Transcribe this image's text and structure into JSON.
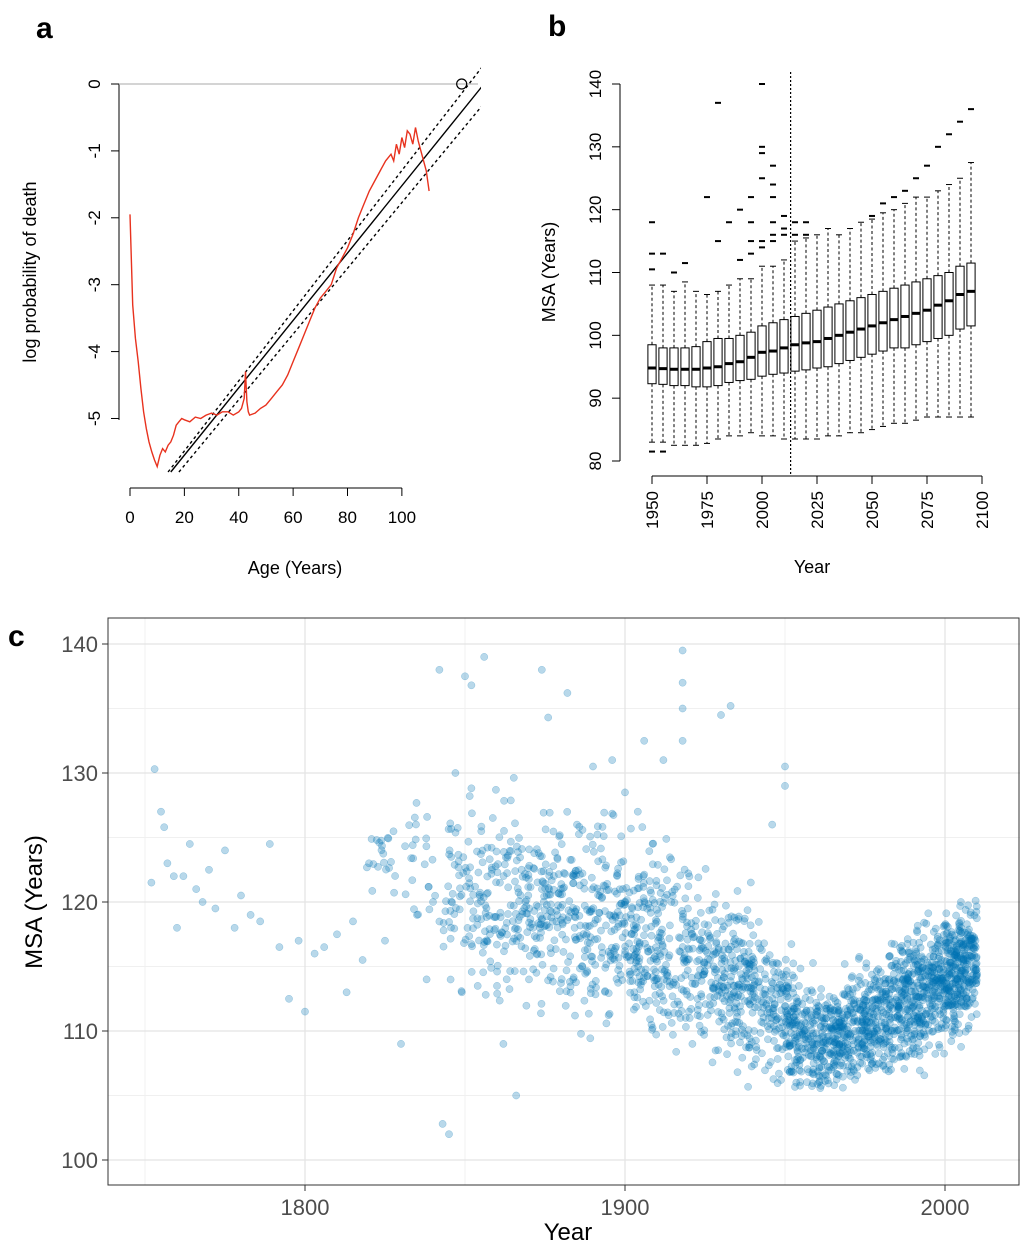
{
  "chart_data": [
    {
      "panel_label": "a",
      "type": "line",
      "xlabel": "Age (Years)",
      "ylabel": "log probability of death",
      "xlim": [
        0,
        128
      ],
      "ylim": [
        -5.8,
        0
      ],
      "x_ticks": [
        0,
        20,
        40,
        60,
        80,
        100
      ],
      "y_ticks": [
        0,
        -1,
        -2,
        -3,
        -4,
        -5
      ],
      "grid": false,
      "reference_line_y": 0,
      "colors": {
        "observed": "#e8321e",
        "fit": "#000000",
        "reference": "#bbbbbb"
      },
      "observed_series": {
        "x": [
          0,
          1,
          2,
          3,
          4,
          5,
          6,
          7,
          8,
          9,
          10,
          11,
          12,
          13,
          14,
          15,
          16,
          17,
          18,
          19,
          20,
          22,
          24,
          26,
          28,
          30,
          32,
          34,
          36,
          38,
          40,
          41,
          42,
          42.5,
          43,
          43.5,
          44,
          46,
          48,
          50,
          52,
          54,
          56,
          58,
          60,
          62,
          64,
          66,
          68,
          70,
          72,
          74,
          76,
          78,
          80,
          82,
          84,
          86,
          88,
          90,
          92,
          94,
          96,
          97,
          98,
          99,
          100,
          101,
          102,
          103,
          104,
          105,
          106,
          107,
          108,
          109,
          110
        ],
        "y": [
          -1.95,
          -3.3,
          -3.8,
          -4.15,
          -4.55,
          -4.9,
          -5.15,
          -5.35,
          -5.5,
          -5.62,
          -5.72,
          -5.55,
          -5.45,
          -5.5,
          -5.4,
          -5.35,
          -5.25,
          -5.1,
          -5.05,
          -5.0,
          -5.02,
          -5.05,
          -4.98,
          -5.0,
          -4.95,
          -4.92,
          -4.95,
          -4.9,
          -4.9,
          -4.95,
          -4.9,
          -4.85,
          -4.7,
          -4.3,
          -4.75,
          -4.9,
          -4.95,
          -4.92,
          -4.85,
          -4.8,
          -4.7,
          -4.6,
          -4.5,
          -4.35,
          -4.15,
          -3.95,
          -3.75,
          -3.55,
          -3.35,
          -3.2,
          -3.1,
          -3.0,
          -2.75,
          -2.6,
          -2.45,
          -2.25,
          -2.0,
          -1.8,
          -1.6,
          -1.45,
          -1.3,
          -1.15,
          -1.05,
          -1.15,
          -0.9,
          -1.05,
          -0.8,
          -0.95,
          -0.7,
          -0.75,
          -0.9,
          -0.65,
          -0.85,
          -1.0,
          -1.15,
          -1.3,
          -1.6
        ]
      },
      "fit_line": {
        "x": [
          15,
          130
        ],
        "y": [
          -5.8,
          -0.01
        ]
      },
      "confidence_upper": {
        "x": [
          14,
          130
        ],
        "y": [
          -5.8,
          0.28
        ]
      },
      "confidence_lower": {
        "x": [
          18,
          130
        ],
        "y": [
          -5.8,
          -0.3
        ]
      },
      "open_point": {
        "x": 122,
        "y": 0
      }
    },
    {
      "panel_label": "b",
      "type": "box",
      "xlabel": "Year",
      "ylabel": "MSA (Years)",
      "xlim": [
        1945,
        2100
      ],
      "ylim": [
        80,
        141
      ],
      "x_ticks": [
        1950,
        1975,
        2000,
        2025,
        2050,
        2075,
        2100
      ],
      "y_ticks": [
        80,
        90,
        100,
        110,
        120,
        130,
        140
      ],
      "grid": false,
      "reference_line_x": 2013,
      "boxes": [
        {
          "year": 1950,
          "wlow": 83,
          "q1": 92.3,
          "median": 94.8,
          "q3": 98.5,
          "whigh": 108,
          "outliers": [
            81.5,
            113,
            118,
            110.5
          ]
        },
        {
          "year": 1955,
          "wlow": 83,
          "q1": 92.2,
          "median": 94.7,
          "q3": 98,
          "whigh": 108,
          "outliers": [
            81.5,
            113
          ]
        },
        {
          "year": 1960,
          "wlow": 82.5,
          "q1": 92,
          "median": 94.6,
          "q3": 98,
          "whigh": 107,
          "outliers": [
            110
          ]
        },
        {
          "year": 1965,
          "wlow": 82.5,
          "q1": 92,
          "median": 94.6,
          "q3": 98,
          "whigh": 108.5,
          "outliers": [
            111.5
          ]
        },
        {
          "year": 1970,
          "wlow": 82.5,
          "q1": 91.8,
          "median": 94.6,
          "q3": 98.2,
          "whigh": 107,
          "outliers": []
        },
        {
          "year": 1975,
          "wlow": 82.8,
          "q1": 91.8,
          "median": 94.8,
          "q3": 99,
          "whigh": 106.5,
          "outliers": [
            122
          ]
        },
        {
          "year": 1980,
          "wlow": 83.5,
          "q1": 92,
          "median": 95,
          "q3": 99.5,
          "whigh": 107,
          "outliers": [
            115,
            137
          ]
        },
        {
          "year": 1985,
          "wlow": 84,
          "q1": 92.5,
          "median": 95.5,
          "q3": 99.5,
          "whigh": 108,
          "outliers": [
            118
          ]
        },
        {
          "year": 1990,
          "wlow": 84,
          "q1": 92.8,
          "median": 95.8,
          "q3": 100,
          "whigh": 109,
          "outliers": [
            120,
            112
          ]
        },
        {
          "year": 1995,
          "wlow": 84.5,
          "q1": 93,
          "median": 96.5,
          "q3": 100.5,
          "whigh": 109,
          "outliers": [
            115,
            118,
            122,
            113
          ]
        },
        {
          "year": 2000,
          "wlow": 84,
          "q1": 93.5,
          "median": 97.3,
          "q3": 101.5,
          "whigh": 111,
          "outliers": [
            115,
            125,
            129,
            130,
            140,
            114
          ]
        },
        {
          "year": 2005,
          "wlow": 84,
          "q1": 93.8,
          "median": 97.5,
          "q3": 102,
          "whigh": 111,
          "outliers": [
            115,
            116,
            127,
            124,
            122,
            118
          ]
        },
        {
          "year": 2010,
          "wlow": 83.5,
          "q1": 94,
          "median": 98,
          "q3": 102.5,
          "whigh": 112,
          "outliers": [
            116,
            117,
            119
          ]
        },
        {
          "year": 2015,
          "wlow": 83.5,
          "q1": 94.3,
          "median": 98.5,
          "q3": 103,
          "whigh": 115,
          "outliers": [
            116,
            118
          ]
        },
        {
          "year": 2020,
          "wlow": 83.5,
          "q1": 94.5,
          "median": 98.8,
          "q3": 103.5,
          "whigh": 115.5,
          "outliers": [
            116,
            118
          ]
        },
        {
          "year": 2025,
          "wlow": 83.5,
          "q1": 94.8,
          "median": 99,
          "q3": 104,
          "whigh": 116,
          "outliers": []
        },
        {
          "year": 2030,
          "wlow": 84,
          "q1": 95,
          "median": 99.5,
          "q3": 104.5,
          "whigh": 117,
          "outliers": []
        },
        {
          "year": 2035,
          "wlow": 84,
          "q1": 95.5,
          "median": 100,
          "q3": 105,
          "whigh": 116,
          "outliers": []
        },
        {
          "year": 2040,
          "wlow": 84.5,
          "q1": 96,
          "median": 100.5,
          "q3": 105.5,
          "whigh": 117,
          "outliers": []
        },
        {
          "year": 2045,
          "wlow": 84.5,
          "q1": 96.5,
          "median": 101,
          "q3": 106,
          "whigh": 118,
          "outliers": []
        },
        {
          "year": 2050,
          "wlow": 85,
          "q1": 97,
          "median": 101.5,
          "q3": 106.5,
          "whigh": 118.5,
          "outliers": [
            119
          ]
        },
        {
          "year": 2055,
          "wlow": 85.5,
          "q1": 97.5,
          "median": 102,
          "q3": 107,
          "whigh": 119.5,
          "outliers": [
            121
          ]
        },
        {
          "year": 2060,
          "wlow": 86,
          "q1": 98,
          "median": 102.5,
          "q3": 107.5,
          "whigh": 120,
          "outliers": [
            122
          ]
        },
        {
          "year": 2065,
          "wlow": 86,
          "q1": 98,
          "median": 103,
          "q3": 108,
          "whigh": 121,
          "outliers": [
            123
          ]
        },
        {
          "year": 2070,
          "wlow": 86.5,
          "q1": 98.5,
          "median": 103.5,
          "q3": 108.5,
          "whigh": 122,
          "outliers": [
            125
          ]
        },
        {
          "year": 2075,
          "wlow": 87,
          "q1": 99,
          "median": 104,
          "q3": 109,
          "whigh": 122,
          "outliers": [
            127
          ]
        },
        {
          "year": 2080,
          "wlow": 87,
          "q1": 99.5,
          "median": 104.8,
          "q3": 109.5,
          "whigh": 123,
          "outliers": [
            130
          ]
        },
        {
          "year": 2085,
          "wlow": 87,
          "q1": 100,
          "median": 105.5,
          "q3": 110,
          "whigh": 124,
          "outliers": [
            132
          ]
        },
        {
          "year": 2090,
          "wlow": 87,
          "q1": 101,
          "median": 106.5,
          "q3": 111,
          "whigh": 125,
          "outliers": [
            134
          ]
        },
        {
          "year": 2095,
          "wlow": 87,
          "q1": 101.5,
          "median": 107,
          "q3": 111.5,
          "whigh": 127.5,
          "outliers": [
            136
          ]
        }
      ]
    },
    {
      "panel_label": "c",
      "type": "scatter",
      "xlabel": "Year",
      "ylabel": "MSA (Years)",
      "xlim": [
        1740,
        2023
      ],
      "ylim": [
        98,
        142
      ],
      "x_ticks": [
        1800,
        1900,
        2000
      ],
      "y_ticks": [
        100,
        110,
        120,
        130,
        140
      ],
      "grid": true,
      "point_color": "#0072b2",
      "point_opacity": 0.28,
      "anchor_points": {
        "x": [
          1752,
          1753,
          1755,
          1756,
          1757,
          1759,
          1760,
          1762,
          1764,
          1766,
          1768,
          1770,
          1772,
          1775,
          1778,
          1780,
          1783,
          1786,
          1789,
          1792,
          1795,
          1798,
          1800,
          1803,
          1806,
          1810,
          1813,
          1815,
          1818,
          1820,
          1825,
          1830,
          1835,
          1838,
          1840,
          1842,
          1843,
          1845,
          1847,
          1849,
          1850,
          1852,
          1856,
          1860,
          1862,
          1866,
          1870,
          1874,
          1876,
          1882,
          1885,
          1890,
          1896,
          1900,
          1904,
          1906,
          1912,
          1918,
          1918,
          1918,
          1918,
          1930,
          1933,
          1946,
          1950,
          1950
        ],
        "y": [
          121.5,
          130.3,
          127,
          125.8,
          123,
          122,
          118,
          122,
          124.5,
          121,
          120,
          122.5,
          119.5,
          124,
          118,
          120.5,
          119,
          118.5,
          124.5,
          116.5,
          112.5,
          117,
          111.5,
          116,
          116.5,
          117.5,
          113,
          118.5,
          115.5,
          123,
          117,
          109,
          119,
          114,
          120,
          138,
          102.8,
          102,
          130,
          113,
          137.5,
          136.8,
          139,
          113.5,
          109,
          105,
          114,
          138,
          134.3,
          136.2,
          126,
          130.5,
          131,
          128.5,
          127,
          132.5,
          131,
          139.5,
          137,
          135,
          132.5,
          134.5,
          135.2,
          126,
          130.5,
          129
        ]
      },
      "trend": [
        {
          "x": 1818,
          "center": 123,
          "spread": 2.5,
          "n": 20
        },
        {
          "x": 1830,
          "center": 123.5,
          "spread": 3,
          "n": 30
        },
        {
          "x": 1845,
          "center": 121,
          "spread": 6,
          "n": 110
        },
        {
          "x": 1860,
          "center": 120.5,
          "spread": 6.5,
          "n": 140
        },
        {
          "x": 1875,
          "center": 119.5,
          "spread": 6.5,
          "n": 160
        },
        {
          "x": 1890,
          "center": 118.5,
          "spread": 6.5,
          "n": 170
        },
        {
          "x": 1905,
          "center": 117,
          "spread": 6.5,
          "n": 180
        },
        {
          "x": 1920,
          "center": 116,
          "spread": 6,
          "n": 190
        },
        {
          "x": 1935,
          "center": 114,
          "spread": 5.5,
          "n": 200
        },
        {
          "x": 1950,
          "center": 111,
          "spread": 4.5,
          "n": 220
        },
        {
          "x": 1962,
          "center": 109,
          "spread": 3.5,
          "n": 260
        },
        {
          "x": 1975,
          "center": 110.5,
          "spread": 4,
          "n": 280
        },
        {
          "x": 1988,
          "center": 112.5,
          "spread": 4.5,
          "n": 300
        },
        {
          "x": 2000,
          "center": 114,
          "spread": 4.5,
          "n": 320
        },
        {
          "x": 2010,
          "center": 115.5,
          "spread": 3.8,
          "n": 220
        }
      ]
    }
  ]
}
